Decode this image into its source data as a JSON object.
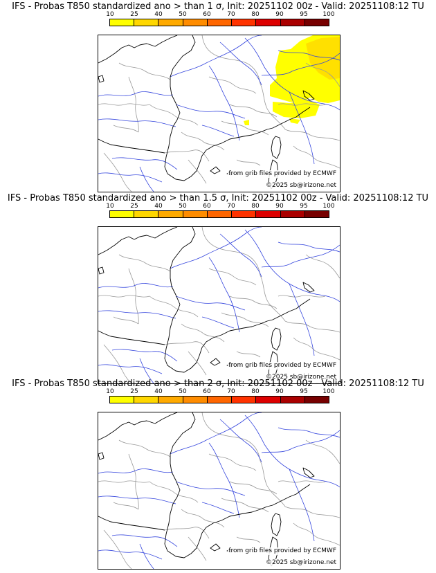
{
  "panels": [
    {
      "title": "IFS - Probas T850  standardized ano > than 1 σ, Init: 20251102 00z - Valid: 20251108:12 TU",
      "has_shading": true
    },
    {
      "title": "IFS - Probas T850  standardized ano > than 1.5 σ, Init: 20251102 00z - Valid: 20251108:12 TU",
      "has_shading": false
    },
    {
      "title": "IFS - Probas T850  standardized ano > than 2 σ, Init: 20251102 00z - Valid: 20251108:12 TU",
      "has_shading": false
    }
  ],
  "colorbar": {
    "ticks": [
      "10",
      "25",
      "40",
      "50",
      "60",
      "70",
      "80",
      "90",
      "95",
      "100"
    ],
    "colors": [
      "#ffff00",
      "#ffd700",
      "#ffaa00",
      "#ff8c00",
      "#ff6600",
      "#ff3300",
      "#dd0000",
      "#aa0000",
      "#770000"
    ]
  },
  "credits": {
    "source": "from grib files provided by ECMWF",
    "copyright": "©2025 sb@irizone.net"
  },
  "colors": {
    "rivers": "#3344dd",
    "borders": "#999999",
    "coast": "#000000",
    "probability_low": "#ffff00",
    "probability_mid": "#ffe000"
  }
}
